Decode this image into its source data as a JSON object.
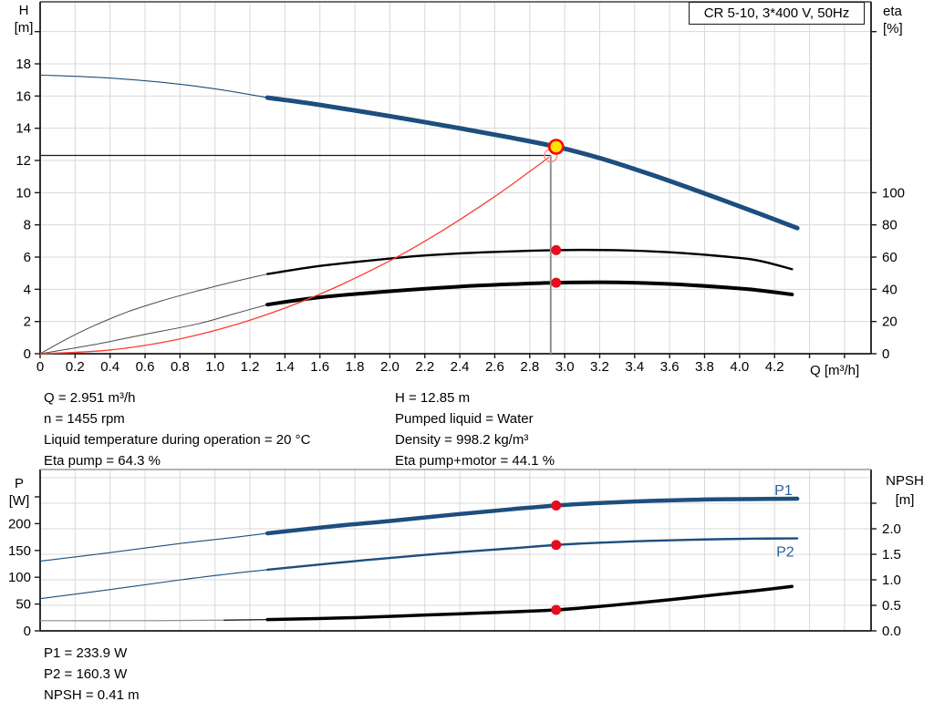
{
  "title_box": {
    "label": "CR 5-10, 3*400 V, 50Hz"
  },
  "axis_labels": {
    "h": "H",
    "h_unit": "[m]",
    "eta": "eta",
    "eta_unit": "[%]",
    "q": "Q [m³/h]",
    "p": "P",
    "p_unit": "[W]",
    "npsh": "NPSH",
    "npsh_unit": "[m]"
  },
  "annotations": {
    "left_column": [
      "Q = 2.951 m³/h",
      "n = 1455 rpm",
      "Liquid temperature during operation = 20 °C",
      "Eta pump = 64.3 %"
    ],
    "right_column": [
      "H = 12.85 m",
      "Pumped liquid = Water",
      "Density = 998.2 kg/m³",
      "Eta pump+motor = 44.1 %"
    ],
    "bottom": [
      "P1 = 233.9 W",
      "P2 = 160.3 W",
      "NPSH = 0.41 m"
    ]
  },
  "colors": {
    "grid": "#d9d9d9",
    "axis": "#1a1a1a",
    "curve_blue": "#1d4e7e",
    "curve_black": "#000000",
    "curve_red": "#ff3b30",
    "dot_red": "#e60c1e",
    "duty_fill": "#ffe000",
    "duty_ring": "#ff0000",
    "requested_ring": "#ff8a8a",
    "crosshair_gray": "#909090",
    "label_blue": "#2c5f9e",
    "gray_border": "#9c9c9c"
  },
  "chart_data": [
    {
      "name": "hq",
      "type": "line",
      "title": "CR 5-10, 3*400 V, 50Hz",
      "x": {
        "label": "Q [m³/h]",
        "min": 0,
        "max": 4.752,
        "ticks": [
          {
            "v": 0,
            "t": "0"
          },
          {
            "v": 0.2,
            "t": "0.2"
          },
          {
            "v": 0.4,
            "t": "0.4"
          },
          {
            "v": 0.6,
            "t": "0.6"
          },
          {
            "v": 0.8,
            "t": "0.8"
          },
          {
            "v": 1,
            "t": "1.0"
          },
          {
            "v": 1.2,
            "t": "1.2"
          },
          {
            "v": 1.4,
            "t": "1.4"
          },
          {
            "v": 1.6,
            "t": "1.6"
          },
          {
            "v": 1.8,
            "t": "1.8"
          },
          {
            "v": 2,
            "t": "2.0"
          },
          {
            "v": 2.2,
            "t": "2.2"
          },
          {
            "v": 2.4,
            "t": "2.4"
          },
          {
            "v": 2.6,
            "t": "2.6"
          },
          {
            "v": 2.8,
            "t": "2.8"
          },
          {
            "v": 3,
            "t": "3.0"
          },
          {
            "v": 3.2,
            "t": "3.2"
          },
          {
            "v": 3.4,
            "t": "3.4"
          },
          {
            "v": 3.6,
            "t": "3.6"
          },
          {
            "v": 3.8,
            "t": "3.8"
          },
          {
            "v": 4,
            "t": "4.0"
          },
          {
            "v": 4.2,
            "t": "4.2"
          },
          {
            "v": 4.4,
            "t": ""
          },
          {
            "v": 4.6,
            "t": ""
          }
        ]
      },
      "y_left": {
        "label": "H [m]",
        "min": 0,
        "max": 21.85,
        "ticks": [
          {
            "v": 0,
            "t": "0"
          },
          {
            "v": 2,
            "t": "2"
          },
          {
            "v": 4,
            "t": "4"
          },
          {
            "v": 6,
            "t": "6"
          },
          {
            "v": 8,
            "t": "8"
          },
          {
            "v": 10,
            "t": "10"
          },
          {
            "v": 12,
            "t": "12"
          },
          {
            "v": 14,
            "t": "14"
          },
          {
            "v": 16,
            "t": "16"
          },
          {
            "v": 18,
            "t": "18"
          },
          {
            "v": 20,
            "t": ""
          }
        ]
      },
      "y_right": {
        "label": "eta [%]",
        "min": 0,
        "max": 218.5,
        "ticks": [
          {
            "v": 0,
            "t": "0"
          },
          {
            "v": 20,
            "t": "20"
          },
          {
            "v": 40,
            "t": "40"
          },
          {
            "v": 60,
            "t": "60"
          },
          {
            "v": 80,
            "t": "80"
          },
          {
            "v": 100,
            "t": "100"
          },
          {
            "v": 200,
            "t": ""
          }
        ]
      },
      "grid": {
        "x_start": 0.2,
        "x_step": 0.2,
        "x_end": 4.6,
        "y_axis": "left",
        "y_values": [
          2,
          4,
          6,
          8,
          10,
          12,
          14,
          16,
          18,
          20
        ]
      },
      "series": [
        {
          "name": "head-curve",
          "axis": "left",
          "color": "#1d4e7e",
          "w_thin": 1.1,
          "w_thick": 5,
          "thin": [
            [
              0,
              17.3
            ],
            [
              0.35,
              17.15
            ],
            [
              0.7,
              16.85
            ],
            [
              1.0,
              16.45
            ],
            [
              1.3,
              15.9
            ]
          ],
          "thick": [
            [
              1.3,
              15.9
            ],
            [
              1.6,
              15.45
            ],
            [
              2.0,
              14.75
            ],
            [
              2.4,
              14.0
            ],
            [
              2.7,
              13.4
            ],
            [
              2.951,
              12.85
            ],
            [
              3.2,
              12.15
            ],
            [
              3.5,
              11.1
            ],
            [
              3.8,
              9.95
            ],
            [
              4.1,
              8.75
            ],
            [
              4.33,
              7.8
            ]
          ]
        },
        {
          "name": "eta-pump-curve",
          "axis": "right",
          "color": "#000000",
          "thin_color": "#4a4a4a",
          "w_thin": 1,
          "w_thick": 2.4,
          "thin": [
            [
              0,
              0
            ],
            [
              0.15,
              9
            ],
            [
              0.3,
              17
            ],
            [
              0.5,
              26
            ],
            [
              0.7,
              33
            ],
            [
              0.9,
              39
            ],
            [
              1.1,
              44.5
            ],
            [
              1.3,
              49.5
            ]
          ],
          "thick": [
            [
              1.3,
              49.5
            ],
            [
              1.6,
              54.5
            ],
            [
              1.9,
              58
            ],
            [
              2.2,
              61
            ],
            [
              2.5,
              62.8
            ],
            [
              2.951,
              64.3
            ],
            [
              3.3,
              64.3
            ],
            [
              3.6,
              63
            ],
            [
              3.9,
              60.5
            ],
            [
              4.1,
              58
            ],
            [
              4.3,
              52.5
            ]
          ]
        },
        {
          "name": "eta-pump-motor-curve",
          "axis": "right",
          "color": "#000000",
          "thin_color": "#4a4a4a",
          "w_thin": 1,
          "w_thick": 4,
          "thin": [
            [
              0,
              0
            ],
            [
              0.3,
              5.5
            ],
            [
              0.6,
              12
            ],
            [
              0.9,
              18.5
            ],
            [
              1.1,
              24.5
            ],
            [
              1.3,
              30.5
            ]
          ],
          "thick": [
            [
              1.3,
              30.5
            ],
            [
              1.6,
              35
            ],
            [
              2.0,
              38.8
            ],
            [
              2.4,
              41.7
            ],
            [
              2.7,
              43.2
            ],
            [
              2.951,
              44.1
            ],
            [
              3.3,
              44.3
            ],
            [
              3.6,
              43.3
            ],
            [
              3.9,
              41.3
            ],
            [
              4.1,
              39.5
            ],
            [
              4.3,
              36.8
            ]
          ]
        },
        {
          "name": "system-curve",
          "axis": "left",
          "color": "#ff3b30",
          "w_thin": 1.3,
          "w_thick": 1.3,
          "thin": [
            [
              0,
              0
            ],
            [
              0.4,
              0.23
            ],
            [
              0.8,
              0.92
            ],
            [
              1.2,
              2.08
            ],
            [
              1.6,
              3.7
            ],
            [
              2.0,
              5.77
            ],
            [
              2.3,
              7.64
            ],
            [
              2.6,
              9.76
            ],
            [
              2.8,
              11.32
            ],
            [
              2.91,
              12.2
            ]
          ],
          "thick": []
        }
      ],
      "markers": {
        "crosshair": {
          "q": 2.92,
          "h": 12.31
        },
        "requested_point": {
          "q": 2.92,
          "h": 12.31
        },
        "duty_point": {
          "q": 2.951,
          "h": 12.85
        },
        "dots": [
          {
            "name": "eta-pump-dot",
            "q": 2.951,
            "axis": "right",
            "v": 64.3
          },
          {
            "name": "eta-pump-motor-dot",
            "q": 2.951,
            "axis": "right",
            "v": 44.1
          }
        ]
      },
      "series_labels": []
    },
    {
      "name": "power-npsh",
      "type": "line",
      "title": "",
      "x": {
        "label": "",
        "min": 0,
        "max": 4.752,
        "ticks": []
      },
      "y_left": {
        "label": "P [W]",
        "min": 0,
        "max": 301,
        "ticks": [
          {
            "v": 0,
            "t": "0"
          },
          {
            "v": 50,
            "t": "50"
          },
          {
            "v": 100,
            "t": "100"
          },
          {
            "v": 150,
            "t": "150"
          },
          {
            "v": 200,
            "t": "200"
          },
          {
            "v": 250,
            "t": ""
          }
        ]
      },
      "y_right": {
        "label": "NPSH [m]",
        "min": 0,
        "max": 3.161,
        "ticks": [
          {
            "v": 0,
            "t": "0.0"
          },
          {
            "v": 0.5,
            "t": "0.5"
          },
          {
            "v": 1,
            "t": "1.0"
          },
          {
            "v": 1.5,
            "t": "1.5"
          },
          {
            "v": 2,
            "t": "2.0"
          },
          {
            "v": 2.5,
            "t": ""
          }
        ]
      },
      "grid": {
        "x_start": 0.2,
        "x_step": 0.2,
        "x_end": 4.6,
        "y_axis": "right",
        "y_values": [
          0.5,
          1,
          1.5,
          2,
          2.5,
          3
        ]
      },
      "top_border": "#9c9c9c",
      "series": [
        {
          "name": "p1-curve",
          "axis": "left",
          "color": "#1d4e7e",
          "w_thin": 1.1,
          "w_thick": 4.5,
          "thin": [
            [
              0,
              130
            ],
            [
              0.4,
              146
            ],
            [
              0.8,
              163
            ],
            [
              1.1,
              174
            ],
            [
              1.3,
              182
            ]
          ],
          "thick": [
            [
              1.3,
              182
            ],
            [
              1.7,
              196
            ],
            [
              2.0,
              205
            ],
            [
              2.4,
              218
            ],
            [
              2.7,
              227
            ],
            [
              2.951,
              233.9
            ],
            [
              3.2,
              238.5
            ],
            [
              3.5,
              242.5
            ],
            [
              3.8,
              245
            ],
            [
              4.1,
              246
            ],
            [
              4.33,
              246.5
            ]
          ]
        },
        {
          "name": "p2-curve",
          "axis": "left",
          "color": "#1d4e7e",
          "w_thin": 1.1,
          "w_thick": 2.4,
          "thin": [
            [
              0,
              60
            ],
            [
              0.4,
              77
            ],
            [
              0.8,
              95
            ],
            [
              1.1,
              107
            ],
            [
              1.3,
              114
            ]
          ],
          "thick": [
            [
              1.3,
              114
            ],
            [
              1.7,
              127
            ],
            [
              2.0,
              136
            ],
            [
              2.4,
              147
            ],
            [
              2.7,
              154
            ],
            [
              2.951,
              160.3
            ],
            [
              3.2,
              164.5
            ],
            [
              3.5,
              168
            ],
            [
              3.8,
              170.5
            ],
            [
              4.1,
              172
            ],
            [
              4.33,
              172.5
            ]
          ]
        },
        {
          "name": "npsh-curve",
          "axis": "right",
          "color": "#000000",
          "thin_color": "#8f8f8f",
          "w_thin": 1.2,
          "w_thick": 3.5,
          "thin": [
            [
              0,
              0.2
            ],
            [
              0.6,
              0.2
            ],
            [
              1.05,
              0.21
            ]
          ],
          "thin2": [
            [
              1.05,
              0.21
            ],
            [
              1.3,
              0.22
            ]
          ],
          "thick": [
            [
              1.3,
              0.22
            ],
            [
              1.8,
              0.26
            ],
            [
              2.2,
              0.31
            ],
            [
              2.6,
              0.36
            ],
            [
              2.951,
              0.41
            ],
            [
              3.3,
              0.51
            ],
            [
              3.6,
              0.61
            ],
            [
              3.9,
              0.72
            ],
            [
              4.1,
              0.79
            ],
            [
              4.3,
              0.87
            ]
          ]
        }
      ],
      "markers": {
        "dots": [
          {
            "name": "p1-dot",
            "q": 2.951,
            "axis": "left",
            "v": 233.9
          },
          {
            "name": "p2-dot",
            "q": 2.951,
            "axis": "left",
            "v": 160.3
          },
          {
            "name": "npsh-dot",
            "q": 2.951,
            "axis": "right",
            "v": 0.41
          }
        ]
      },
      "series_labels": [
        {
          "name": "p1-label",
          "text": "P1",
          "q": 4.2,
          "axis": "left",
          "v": 262
        },
        {
          "name": "p2-label",
          "text": "P2",
          "q": 4.21,
          "axis": "left",
          "v": 147
        }
      ]
    }
  ]
}
